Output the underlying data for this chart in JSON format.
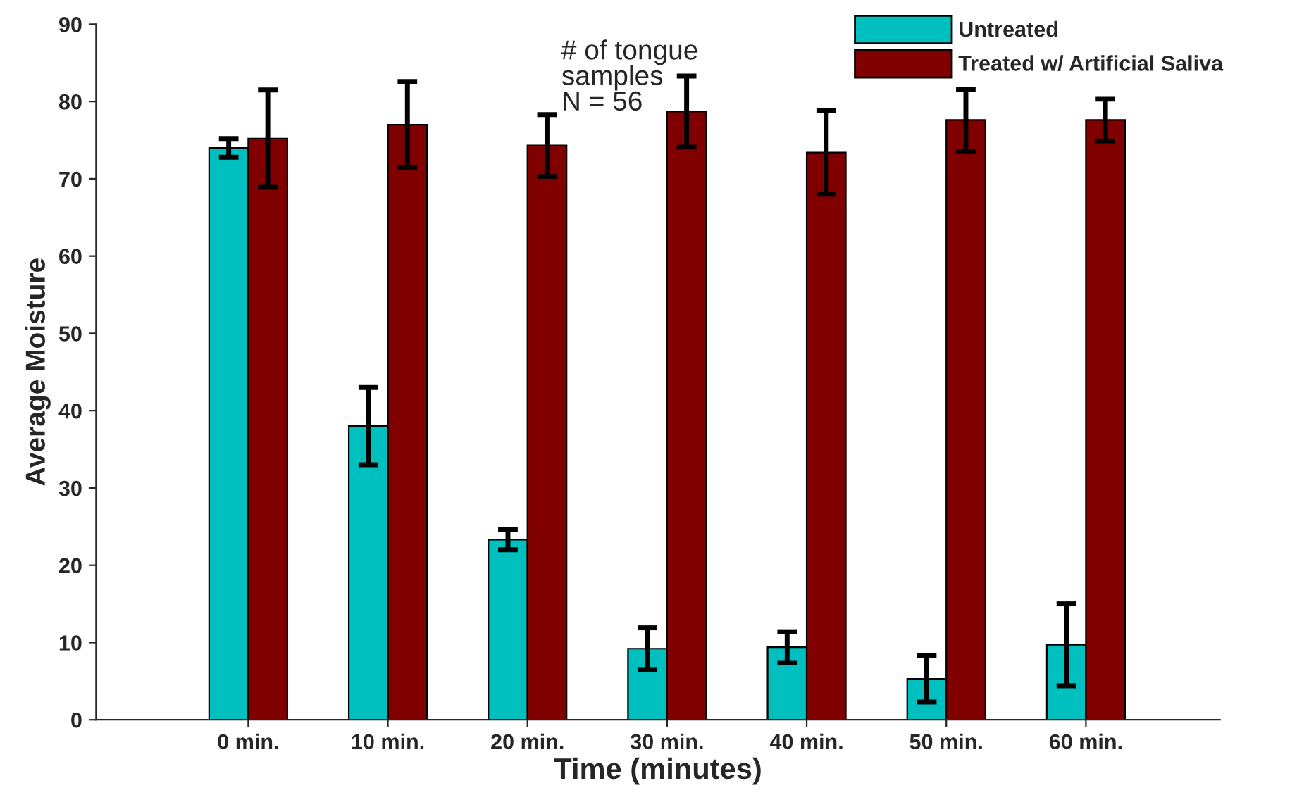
{
  "chart_data": {
    "type": "bar",
    "xlabel": "Time (minutes)",
    "ylabel": "Average Moisture",
    "categories": [
      "0 min.",
      "10 min.",
      "20 min.",
      "30 min.",
      "40 min.",
      "50 min.",
      "60 min."
    ],
    "series": [
      {
        "name": "Untreated",
        "color": "#00bfbf",
        "values": [
          74,
          38,
          23.3,
          9.2,
          9.4,
          5.3,
          9.7
        ],
        "errors": [
          1.2,
          5,
          1.3,
          2.7,
          2,
          3,
          5.3
        ]
      },
      {
        "name": "Treated w/ Artificial Saliva",
        "color": "#800000",
        "values": [
          75.2,
          77,
          74.3,
          78.7,
          73.4,
          77.6,
          77.6
        ],
        "errors": [
          6.3,
          5.6,
          4,
          4.6,
          5.4,
          4,
          2.7
        ]
      }
    ],
    "ylim": [
      0,
      90
    ],
    "yticks": [
      0,
      10,
      20,
      30,
      40,
      50,
      60,
      70,
      80,
      90
    ],
    "annotations": [
      "# of tongue\nsamples\nN = 56"
    ],
    "legend": "top right",
    "grid": false
  }
}
